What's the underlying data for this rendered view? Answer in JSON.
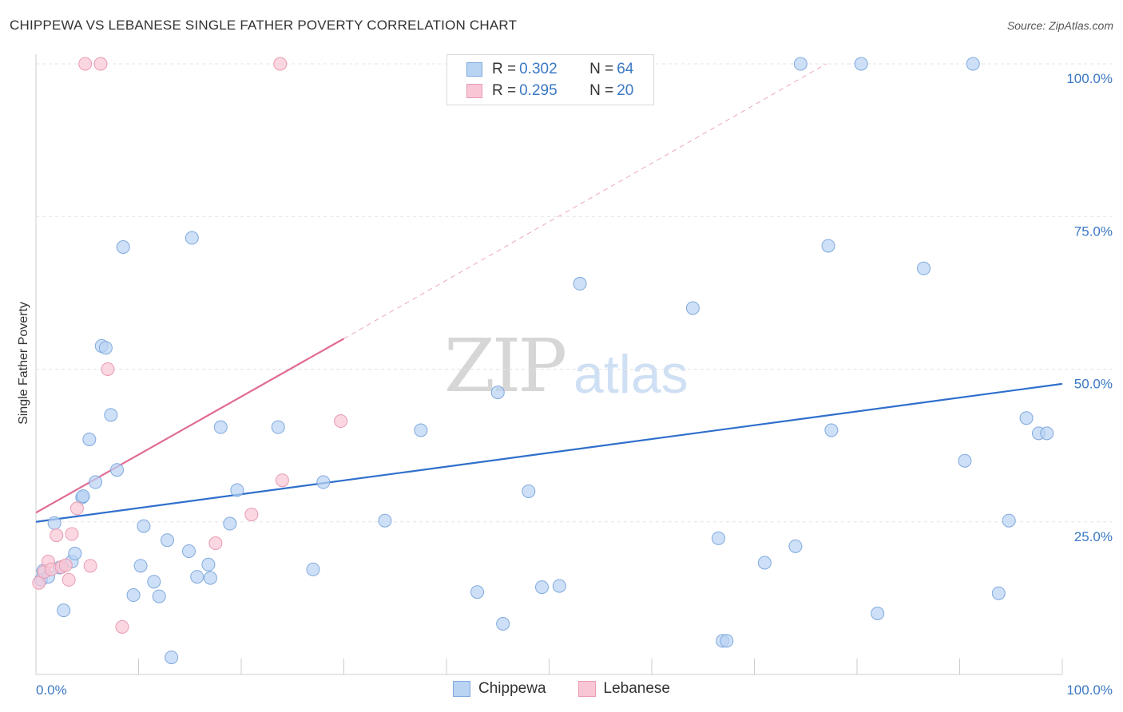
{
  "header": {
    "title": "CHIPPEWA VS LEBANESE SINGLE FATHER POVERTY CORRELATION CHART",
    "source": "Source: ZipAtlas.com"
  },
  "watermark": {
    "zip": "ZIP",
    "atlas": "atlas"
  },
  "legend": {
    "rows": [
      {
        "r_label": "R = ",
        "r_value": "0.302",
        "n_label": "N = ",
        "n_value": "64"
      },
      {
        "r_label": "R = ",
        "r_value": "0.295",
        "n_label": "N = ",
        "n_value": "20"
      }
    ]
  },
  "bottom_legend": {
    "chippewa": "Chippewa",
    "lebanese": "Lebanese"
  },
  "colors": {
    "chippewa_fill": "#b9d3f3",
    "chippewa_stroke": "#7fa9dd",
    "chippewa_line": "#2f6fcc",
    "lebanese_fill": "#f8c6d4",
    "lebanese_stroke": "#e99ab2",
    "lebanese_line": "#e06b96",
    "tick_text": "#3b78c4",
    "grid": "#e3e3e3"
  },
  "chart_data": {
    "type": "scatter",
    "ylabel": "Single Father Poverty",
    "xlim": [
      0,
      100
    ],
    "ylim": [
      0,
      100
    ],
    "x_tick_labels": [
      "0.0%",
      "100.0%"
    ],
    "y_ticks": [
      25,
      50,
      75,
      100
    ],
    "y_tick_labels": [
      "25.0%",
      "50.0%",
      "75.0%",
      "100.0%"
    ],
    "grid": true,
    "legend_position": "top-center",
    "series": [
      {
        "name": "Chippewa",
        "trend": {
          "x": [
            0,
            100
          ],
          "y": [
            25.0,
            47.6
          ]
        },
        "points": [
          [
            0.5,
            15.5
          ],
          [
            0.7,
            17.0
          ],
          [
            1.2,
            16.0
          ],
          [
            1.8,
            24.8
          ],
          [
            2.3,
            17.5
          ],
          [
            2.7,
            10.5
          ],
          [
            3.5,
            18.5
          ],
          [
            3.8,
            19.8
          ],
          [
            4.5,
            29.0
          ],
          [
            4.6,
            29.2
          ],
          [
            5.2,
            38.5
          ],
          [
            5.8,
            31.5
          ],
          [
            6.4,
            53.8
          ],
          [
            6.8,
            53.5
          ],
          [
            7.3,
            42.5
          ],
          [
            7.9,
            33.5
          ],
          [
            8.5,
            70.0
          ],
          [
            9.5,
            13.0
          ],
          [
            10.2,
            17.8
          ],
          [
            10.5,
            24.3
          ],
          [
            11.5,
            15.2
          ],
          [
            12.0,
            12.8
          ],
          [
            12.8,
            22.0
          ],
          [
            13.2,
            2.8
          ],
          [
            14.9,
            20.2
          ],
          [
            15.2,
            71.5
          ],
          [
            15.7,
            16.0
          ],
          [
            16.8,
            18.0
          ],
          [
            17.0,
            15.8
          ],
          [
            18.0,
            40.5
          ],
          [
            18.9,
            24.7
          ],
          [
            19.6,
            30.2
          ],
          [
            23.6,
            40.5
          ],
          [
            27.0,
            17.2
          ],
          [
            28.0,
            31.5
          ],
          [
            34.0,
            25.2
          ],
          [
            37.5,
            40.0
          ],
          [
            43.0,
            13.5
          ],
          [
            45.0,
            46.2
          ],
          [
            45.3,
            100.0
          ],
          [
            45.5,
            8.3
          ],
          [
            48.0,
            30.0
          ],
          [
            49.3,
            14.3
          ],
          [
            51.0,
            14.5
          ],
          [
            53.0,
            64.0
          ],
          [
            64.0,
            60.0
          ],
          [
            66.5,
            22.3
          ],
          [
            66.9,
            5.5
          ],
          [
            67.3,
            5.5
          ],
          [
            71.0,
            18.3
          ],
          [
            74.0,
            21.0
          ],
          [
            74.5,
            100.0
          ],
          [
            77.2,
            70.2
          ],
          [
            77.5,
            40.0
          ],
          [
            80.4,
            100.0
          ],
          [
            82.0,
            10.0
          ],
          [
            86.5,
            66.5
          ],
          [
            90.5,
            35.0
          ],
          [
            91.3,
            100.0
          ],
          [
            93.8,
            13.3
          ],
          [
            94.8,
            25.2
          ],
          [
            96.5,
            42.0
          ],
          [
            97.7,
            39.5
          ],
          [
            98.5,
            39.5
          ]
        ]
      },
      {
        "name": "Lebanese",
        "trend": {
          "x": [
            0,
            30
          ],
          "y": [
            26.5,
            55.0
          ]
        },
        "trend_extension": {
          "x": [
            30,
            77
          ],
          "y": [
            55.0,
            100.0
          ]
        },
        "points": [
          [
            0.3,
            15.0
          ],
          [
            0.8,
            16.8
          ],
          [
            1.2,
            18.5
          ],
          [
            1.5,
            17.2
          ],
          [
            2.0,
            22.8
          ],
          [
            2.5,
            17.6
          ],
          [
            2.9,
            17.9
          ],
          [
            3.2,
            15.5
          ],
          [
            3.5,
            23.0
          ],
          [
            4.0,
            27.2
          ],
          [
            5.3,
            17.8
          ],
          [
            4.8,
            100.0
          ],
          [
            6.3,
            100.0
          ],
          [
            7.0,
            50.0
          ],
          [
            8.4,
            7.8
          ],
          [
            17.5,
            21.5
          ],
          [
            21.0,
            26.2
          ],
          [
            24.0,
            31.8
          ],
          [
            23.8,
            100.0
          ],
          [
            29.7,
            41.5
          ]
        ]
      }
    ]
  }
}
